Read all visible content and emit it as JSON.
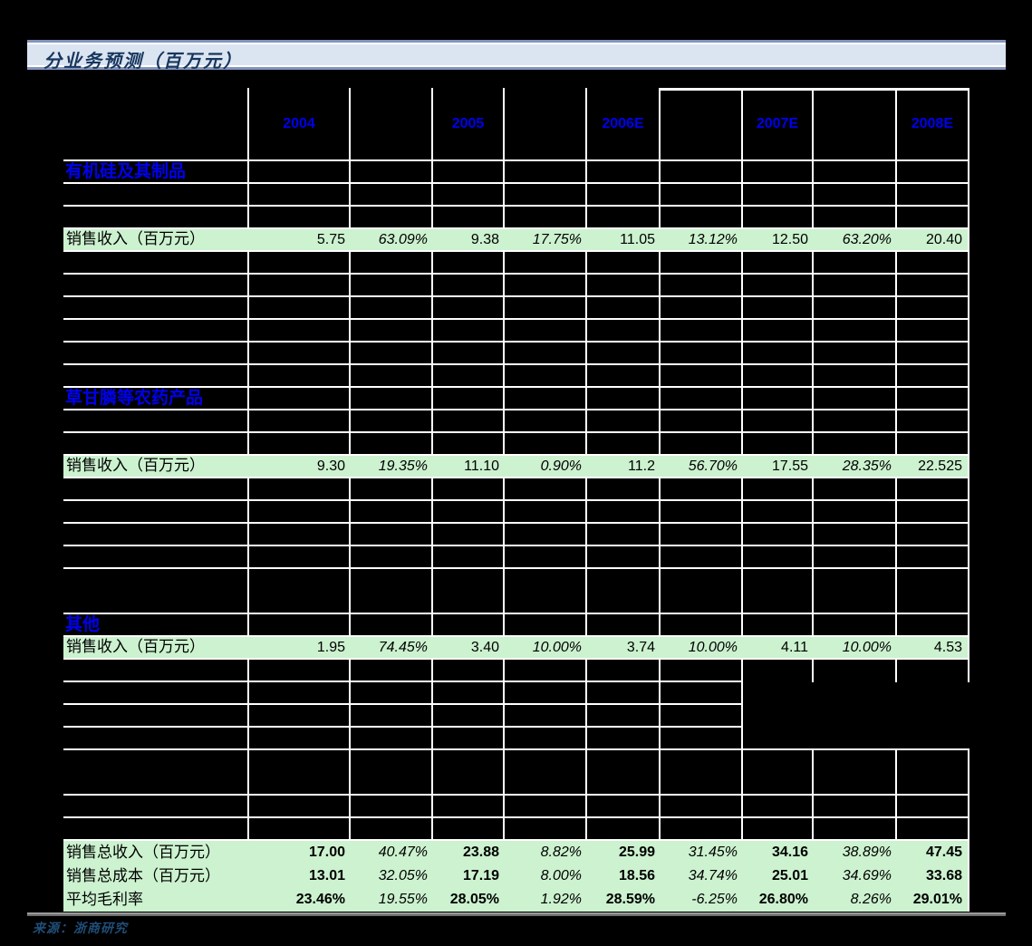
{
  "title_bar": {
    "text": "分业务预测（百万元）"
  },
  "source_note": "来源：浙商研究",
  "colors": {
    "background": "#000000",
    "gridline": "#ffffff",
    "row_highlight": "#ccf2cf",
    "year_header_text": "#0000ee",
    "section_text": "#0000ee",
    "title_text": "#17365d",
    "title_bg": "#dbe5f1",
    "title_border": "#8494bd",
    "source_text": "#1f4e79",
    "bottom_rule": "#8a8a8a"
  },
  "table": {
    "columns": [
      "",
      "2004",
      "",
      "2005",
      "",
      "2006E",
      "",
      "2007E",
      "",
      "2008E"
    ],
    "sections": [
      {
        "name": "有机硅及其制品",
        "revenue": {
          "label": "销售收入（百万元）",
          "values": [
            "5.75",
            "63.09%",
            "9.38",
            "17.75%",
            "11.05",
            "13.12%",
            "12.50",
            "63.20%",
            "20.40"
          ]
        }
      },
      {
        "name": "草甘膦等农药产品",
        "revenue": {
          "label": "销售收入（百万元）",
          "values": [
            "9.30",
            "19.35%",
            "11.10",
            "0.90%",
            "11.2",
            "56.70%",
            "17.55",
            "28.35%",
            "22.525"
          ]
        }
      },
      {
        "name": "其他",
        "revenue": {
          "label": "销售收入（百万元）",
          "values": [
            "1.95",
            "74.45%",
            "3.40",
            "10.00%",
            "3.74",
            "10.00%",
            "4.11",
            "10.00%",
            "4.53"
          ]
        }
      }
    ],
    "summary_rows": [
      {
        "label": "销售总收入（百万元）",
        "values": [
          "17.00",
          "40.47%",
          "23.88",
          "8.82%",
          "25.99",
          "31.45%",
          "34.16",
          "38.89%",
          "47.45"
        ]
      },
      {
        "label": "销售总成本（百万元）",
        "values": [
          "13.01",
          "32.05%",
          "17.19",
          "8.00%",
          "18.56",
          "34.74%",
          "25.01",
          "34.69%",
          "33.68"
        ]
      },
      {
        "label": "平均毛利率",
        "values": [
          "23.46%",
          "19.55%",
          "28.05%",
          "1.92%",
          "28.59%",
          "-6.25%",
          "26.80%",
          "8.26%",
          "29.01%"
        ]
      }
    ]
  }
}
